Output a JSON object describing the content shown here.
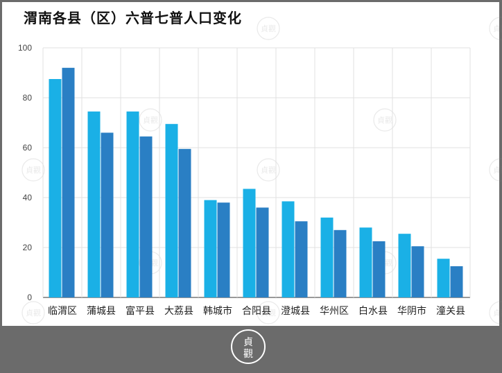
{
  "title": "渭南各县（区）六普七普人口变化",
  "colors": {
    "series_light": "#1ab0e6",
    "series_dark": "#2a7fc4",
    "grid": "#e0e0e0",
    "axis_text": "#444444",
    "frame": "#6b6b6b"
  },
  "watermark": {
    "text": "貞觀",
    "icon": "seal-logo"
  },
  "chart_data": {
    "type": "bar",
    "title": "渭南各县（区）六普七普人口变化",
    "xlabel": "",
    "ylabel": "",
    "ylim": [
      0,
      100
    ],
    "yticks": [
      0,
      20,
      40,
      60,
      80,
      100
    ],
    "grid": true,
    "legend": "none",
    "categories": [
      "临渭区",
      "蒲城县",
      "富平县",
      "大荔县",
      "韩城市",
      "合阳县",
      "澄城县",
      "华州区",
      "白水县",
      "华阴市",
      "潼关县"
    ],
    "series": [
      {
        "values": [
          87.5,
          74.5,
          74.5,
          69.5,
          39,
          43.5,
          38.5,
          32,
          28,
          25.5,
          15.5
        ]
      },
      {
        "values": [
          92,
          66,
          64.5,
          59.5,
          38,
          36,
          30.5,
          27,
          22.5,
          20.5,
          12.5
        ]
      }
    ]
  }
}
